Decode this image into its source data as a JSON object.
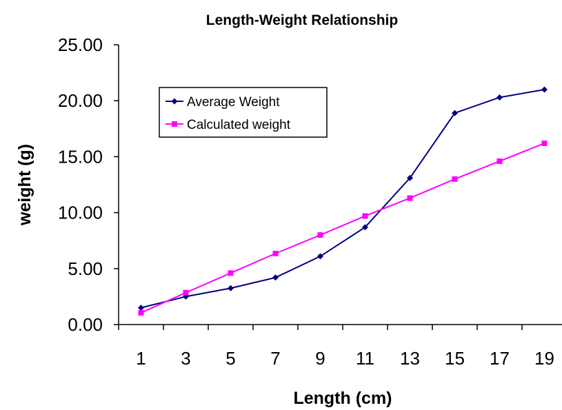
{
  "chart_data": {
    "type": "line",
    "title": "Length-Weight Relationship",
    "xlabel": "Length (cm)",
    "ylabel": "weight (g)",
    "x": [
      1,
      3,
      5,
      7,
      9,
      11,
      13,
      15,
      17,
      19
    ],
    "x_tick_labels": [
      "1",
      "3",
      "5",
      "7",
      "9",
      "11",
      "13",
      "15",
      "17",
      "19"
    ],
    "y_tick_labels": [
      "0.00",
      "5.00",
      "10.00",
      "15.00",
      "20.00",
      "25.00"
    ],
    "ylim": [
      0,
      25
    ],
    "grid": false,
    "legend_position": "upper-left-inside",
    "series": [
      {
        "name": "Average Weight",
        "color": "#000080",
        "marker": "diamond",
        "values": [
          1.5,
          2.5,
          3.25,
          4.2,
          6.1,
          8.7,
          13.1,
          18.9,
          20.3,
          21.0
        ]
      },
      {
        "name": "Calculated weight",
        "color": "#ff00ff",
        "marker": "square",
        "values": [
          1.05,
          2.85,
          4.6,
          6.35,
          8.0,
          9.7,
          11.3,
          13.0,
          14.6,
          16.2
        ]
      }
    ]
  }
}
